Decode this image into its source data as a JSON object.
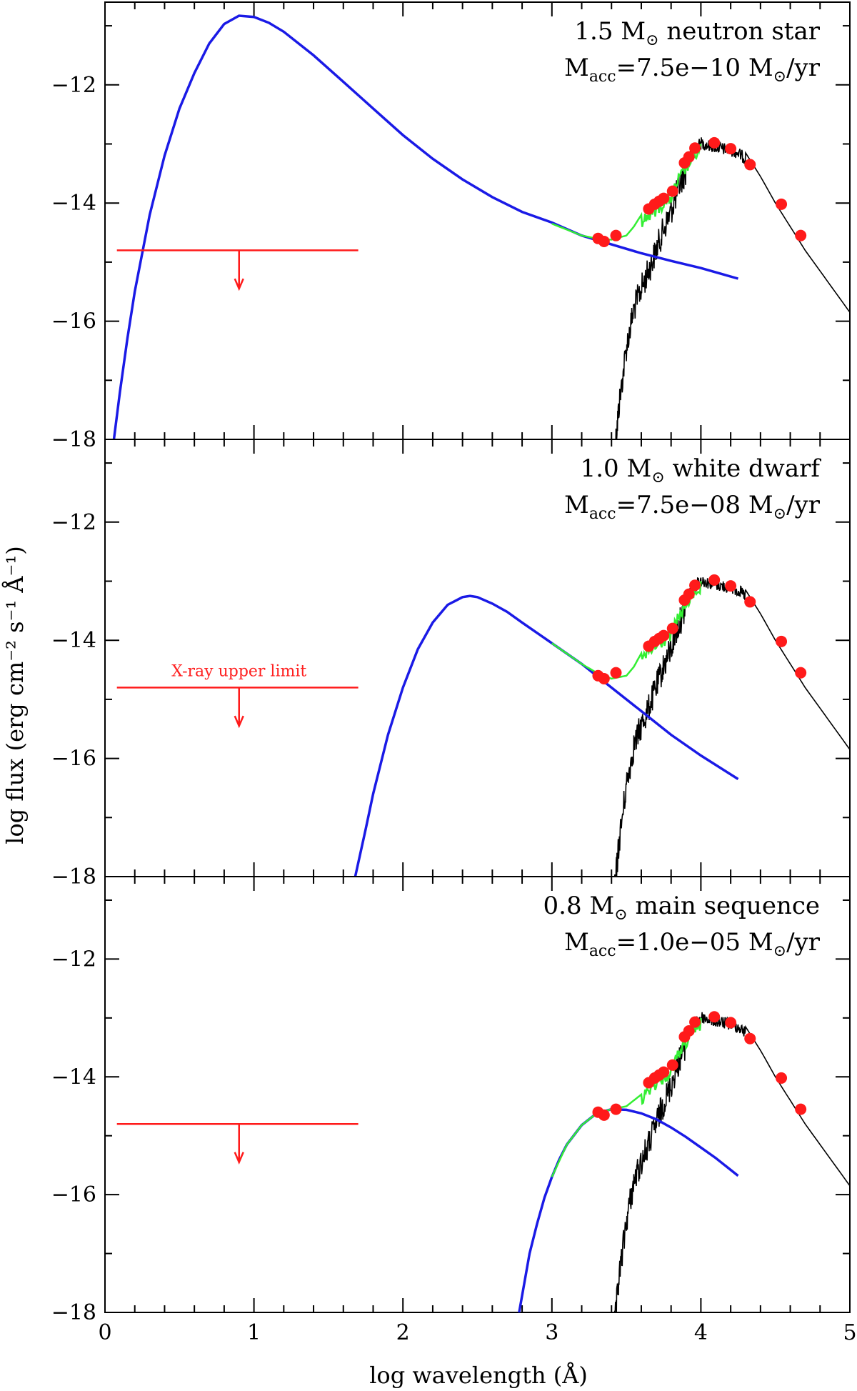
{
  "chart_data": {
    "type": "line",
    "xlabel": "log wavelength (Å)",
    "ylabel": "log flux (erg cm⁻² s⁻¹ Å⁻¹)",
    "xlim": [
      0,
      5
    ],
    "ylim": [
      -18,
      -10.6
    ],
    "xticks": [
      "0",
      "1",
      "2",
      "3",
      "4",
      "5"
    ],
    "yticks": [
      "−12",
      "−14",
      "−16",
      "−18"
    ],
    "colors": {
      "accretion_disk": "#1a1ae6",
      "stellar_spectrum": "#000000",
      "combined_model": "#33ee33",
      "photometry": "#ff1a1a",
      "xray_limit": "#ff1a1a"
    },
    "photometry_points": {
      "x": [
        3.31,
        3.35,
        3.43,
        3.65,
        3.69,
        3.72,
        3.75,
        3.81,
        3.89,
        3.92,
        3.96,
        4.09,
        4.2,
        4.33,
        4.54,
        4.67
      ],
      "y": [
        -14.6,
        -14.65,
        -14.55,
        -14.1,
        -14.02,
        -13.97,
        -13.92,
        -13.8,
        -13.32,
        -13.22,
        -13.07,
        -12.98,
        -13.08,
        -13.35,
        -14.02,
        -14.55
      ]
    },
    "stellar_spectrum": {
      "x": [
        3.42,
        3.45,
        3.5,
        3.55,
        3.6,
        3.65,
        3.7,
        3.75,
        3.8,
        3.85,
        3.9,
        3.95,
        4.0,
        4.05,
        4.1,
        4.15,
        4.2,
        4.25,
        4.3,
        4.4,
        4.5,
        4.6,
        4.7,
        4.8,
        4.9,
        5.0
      ],
      "y": [
        -18.0,
        -17.2,
        -16.2,
        -15.55,
        -15.2,
        -14.9,
        -14.55,
        -14.2,
        -13.9,
        -13.5,
        -13.2,
        -13.0,
        -12.88,
        -12.92,
        -12.95,
        -12.98,
        -13.0,
        -13.05,
        -13.15,
        -13.55,
        -14.0,
        -14.4,
        -14.8,
        -15.15,
        -15.5,
        -15.85
      ]
    },
    "xray_upper_limit": {
      "x_range": [
        0.08,
        1.7
      ],
      "y": -14.8,
      "arrow_x": 0.9,
      "arrow_to_y": -15.45
    },
    "panels": [
      {
        "name": "neutron-star",
        "title_line1": {
          "prefix": "1.5 M",
          "sub": "⊙",
          "suffix": " neutron star"
        },
        "title_line2": {
          "prefix": "M",
          "sub": "acc",
          "middle": "=7.5e−10 M",
          "sub2": "⊙",
          "suffix": "/yr"
        },
        "xray_label": "",
        "disk": {
          "x": [
            0.05,
            0.1,
            0.15,
            0.2,
            0.3,
            0.4,
            0.5,
            0.6,
            0.7,
            0.8,
            0.9,
            1.0,
            1.1,
            1.2,
            1.4,
            1.6,
            1.8,
            2.0,
            2.2,
            2.4,
            2.6,
            2.8,
            3.0,
            3.2,
            3.4,
            3.6,
            3.8,
            4.0,
            4.25
          ],
          "y": [
            -18.2,
            -17.2,
            -16.3,
            -15.5,
            -14.2,
            -13.2,
            -12.4,
            -11.8,
            -11.3,
            -10.97,
            -10.83,
            -10.85,
            -10.95,
            -11.1,
            -11.5,
            -11.95,
            -12.4,
            -12.85,
            -13.25,
            -13.6,
            -13.9,
            -14.15,
            -14.33,
            -14.55,
            -14.7,
            -14.85,
            -14.98,
            -15.1,
            -15.28
          ]
        },
        "combined": {
          "x": [
            3.0,
            3.2,
            3.3,
            3.4,
            3.5,
            3.55,
            3.6,
            3.65,
            3.7,
            3.75,
            3.8,
            3.85,
            3.9,
            3.95,
            4.0
          ],
          "y": [
            -14.35,
            -14.55,
            -14.6,
            -14.62,
            -14.55,
            -14.4,
            -14.2,
            -14.1,
            -14.0,
            -13.9,
            -13.8,
            -13.5,
            -13.3,
            -13.1,
            -13.0
          ]
        }
      },
      {
        "name": "white-dwarf",
        "title_line1": {
          "prefix": "1.0 M",
          "sub": "⊙",
          "suffix": " white dwarf"
        },
        "title_line2": {
          "prefix": "M",
          "sub": "acc",
          "middle": "=7.5e−08 M",
          "sub2": "⊙",
          "suffix": "/yr"
        },
        "xray_label": "X-ray upper limit",
        "disk": {
          "x": [
            1.68,
            1.75,
            1.8,
            1.9,
            2.0,
            2.1,
            2.2,
            2.3,
            2.4,
            2.45,
            2.5,
            2.6,
            2.7,
            2.8,
            3.0,
            3.2,
            3.4,
            3.6,
            3.8,
            4.0,
            4.25
          ],
          "y": [
            -18.0,
            -17.2,
            -16.6,
            -15.6,
            -14.8,
            -14.15,
            -13.7,
            -13.4,
            -13.27,
            -13.25,
            -13.27,
            -13.38,
            -13.52,
            -13.7,
            -14.05,
            -14.4,
            -14.8,
            -15.2,
            -15.6,
            -15.95,
            -16.35
          ]
        },
        "combined": {
          "x": [
            3.0,
            3.2,
            3.3,
            3.4,
            3.5,
            3.55,
            3.6,
            3.65,
            3.7,
            3.75,
            3.8,
            3.85,
            3.9,
            3.95,
            4.0
          ],
          "y": [
            -14.05,
            -14.4,
            -14.55,
            -14.65,
            -14.6,
            -14.45,
            -14.22,
            -14.1,
            -14.0,
            -13.9,
            -13.8,
            -13.5,
            -13.3,
            -13.1,
            -13.0
          ]
        }
      },
      {
        "name": "main-sequence",
        "title_line1": {
          "prefix": "0.8 M",
          "sub": "⊙",
          "suffix": " main sequence"
        },
        "title_line2": {
          "prefix": "M",
          "sub": "acc",
          "middle": "=1.0e−05 M",
          "sub2": "⊙",
          "suffix": "/yr"
        },
        "xray_label": "",
        "disk": {
          "x": [
            2.78,
            2.85,
            2.9,
            2.95,
            3.0,
            3.05,
            3.1,
            3.2,
            3.3,
            3.4,
            3.5,
            3.6,
            3.7,
            3.8,
            3.9,
            4.0,
            4.1,
            4.25
          ],
          "y": [
            -18.0,
            -17.0,
            -16.5,
            -16.05,
            -15.7,
            -15.4,
            -15.15,
            -14.82,
            -14.62,
            -14.55,
            -14.56,
            -14.62,
            -14.72,
            -14.86,
            -15.02,
            -15.2,
            -15.38,
            -15.68
          ]
        },
        "combined": {
          "x": [
            3.0,
            3.1,
            3.2,
            3.3,
            3.4,
            3.5,
            3.55,
            3.6,
            3.65,
            3.7,
            3.75,
            3.8,
            3.85,
            3.9,
            3.95,
            4.0
          ],
          "y": [
            -15.7,
            -15.15,
            -14.82,
            -14.62,
            -14.55,
            -14.5,
            -14.4,
            -14.3,
            -14.1,
            -14.0,
            -13.9,
            -13.8,
            -13.5,
            -13.3,
            -13.1,
            -13.0
          ]
        }
      }
    ]
  }
}
